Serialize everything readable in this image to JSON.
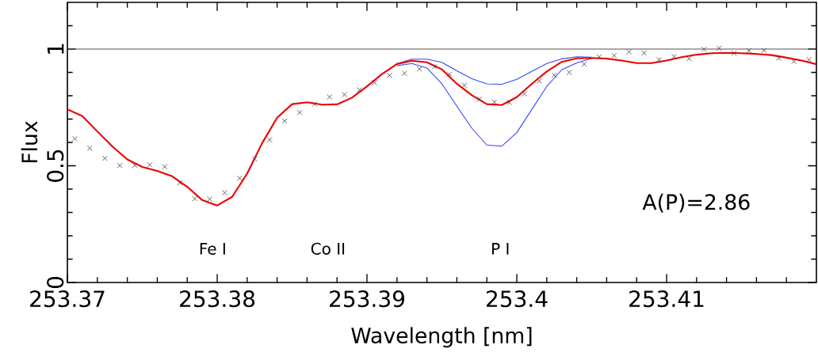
{
  "chart_data": {
    "type": "line",
    "xlabel": "Wavelength [nm]",
    "ylabel": "Flux",
    "xlim": [
      253.37,
      253.42
    ],
    "ylim": [
      0,
      1.2
    ],
    "xticks": [
      253.37,
      253.38,
      253.39,
      253.4,
      253.41,
      {
        "value": 253.372,
        "label": null
      },
      {
        "value": 253.374,
        "label": null
      },
      {
        "value": 253.376,
        "label": null
      },
      {
        "value": 253.378,
        "label": null
      },
      {
        "value": 253.382,
        "label": null
      },
      {
        "value": 253.384,
        "label": null
      },
      {
        "value": 253.386,
        "label": null
      },
      {
        "value": 253.388,
        "label": null
      },
      {
        "value": 253.392,
        "label": null
      },
      {
        "value": 253.394,
        "label": null
      },
      {
        "value": 253.396,
        "label": null
      },
      {
        "value": 253.398,
        "label": null
      },
      {
        "value": 253.402,
        "label": null
      },
      {
        "value": 253.404,
        "label": null
      },
      {
        "value": 253.406,
        "label": null
      },
      {
        "value": 253.408,
        "label": null
      },
      {
        "value": 253.412,
        "label": null
      },
      {
        "value": 253.414,
        "label": null
      },
      {
        "value": 253.416,
        "label": null
      },
      {
        "value": 253.418,
        "label": null
      }
    ],
    "yticks": [
      0,
      0.5,
      1,
      {
        "value": 0.1,
        "label": null
      },
      {
        "value": 0.2,
        "label": null
      },
      {
        "value": 0.3,
        "label": null
      },
      {
        "value": 0.4,
        "label": null
      },
      {
        "value": 0.6,
        "label": null
      },
      {
        "value": 0.7,
        "label": null
      },
      {
        "value": 0.8,
        "label": null
      },
      {
        "value": 0.9,
        "label": null
      },
      {
        "value": 1.1,
        "label": null
      }
    ],
    "grid": false,
    "series": [
      {
        "type": "scatter",
        "marker": "cross",
        "color": "#404040",
        "x": [
          253.3705,
          253.3715,
          253.3725,
          253.3735,
          253.3745,
          253.3755,
          253.3765,
          253.3775,
          253.3785,
          253.3795,
          253.3805,
          253.3815,
          253.3825,
          253.3835,
          253.3845,
          253.3855,
          253.3865,
          253.3875,
          253.3885,
          253.3895,
          253.3905,
          253.3915,
          253.3925,
          253.3935,
          253.3945,
          253.3955,
          253.3965,
          253.3975,
          253.3985,
          253.3995,
          253.4005,
          253.4015,
          253.4025,
          253.4035,
          253.4045,
          253.4055,
          253.4065,
          253.4075,
          253.4085,
          253.4095,
          253.4105,
          253.4115,
          253.4125,
          253.4135,
          253.4145,
          253.4155,
          253.4165,
          253.4175,
          253.4185,
          253.4195
        ],
        "values": [
          0.616,
          0.575,
          0.532,
          0.501,
          0.502,
          0.504,
          0.496,
          0.427,
          0.359,
          0.357,
          0.385,
          0.447,
          0.529,
          0.611,
          0.692,
          0.728,
          0.764,
          0.795,
          0.805,
          0.825,
          0.856,
          0.887,
          0.896,
          0.915,
          0.924,
          0.892,
          0.845,
          0.785,
          0.773,
          0.771,
          0.808,
          0.863,
          0.888,
          0.9,
          0.936,
          0.967,
          0.972,
          0.988,
          0.983,
          0.955,
          0.968,
          0.959,
          0.999,
          1.004,
          0.982,
          0.993,
          0.994,
          0.961,
          0.947,
          0.955
        ]
      },
      {
        "color": "#3344ff",
        "line_style": "solid",
        "marker": "none",
        "x": [
          253.392,
          253.393,
          253.394,
          253.395,
          253.396,
          253.397,
          253.398,
          253.399,
          253.4,
          253.401,
          253.402,
          253.403,
          253.404,
          253.405
        ],
        "values": [
          0.937,
          0.957,
          0.957,
          0.943,
          0.907,
          0.873,
          0.851,
          0.849,
          0.87,
          0.904,
          0.938,
          0.958,
          0.967,
          0.965
        ]
      },
      {
        "color": "#3344ff",
        "line_style": "solid",
        "marker": "none",
        "x": [
          253.392,
          253.393,
          253.394,
          253.395,
          253.396,
          253.397,
          253.398,
          253.399,
          253.4,
          253.401,
          253.402,
          253.403,
          253.404,
          253.405
        ],
        "values": [
          0.929,
          0.938,
          0.919,
          0.851,
          0.755,
          0.661,
          0.589,
          0.584,
          0.642,
          0.741,
          0.84,
          0.911,
          0.941,
          0.96
        ]
      },
      {
        "color": "#ee0000",
        "line_style": "solid",
        "marker": "none",
        "x": [
          253.37,
          253.371,
          253.372,
          253.373,
          253.374,
          253.375,
          253.376,
          253.377,
          253.378,
          253.379,
          253.38,
          253.381,
          253.382,
          253.383,
          253.384,
          253.385,
          253.386,
          253.387,
          253.388,
          253.389,
          253.39,
          253.391,
          253.392,
          253.393,
          253.394,
          253.395,
          253.396,
          253.397,
          253.398,
          253.399,
          253.4,
          253.401,
          253.402,
          253.403,
          253.404,
          253.405,
          253.406,
          253.407,
          253.408,
          253.409,
          253.41,
          253.411,
          253.412,
          253.413,
          253.414,
          253.415,
          253.416,
          253.417,
          253.418,
          253.419,
          253.42
        ],
        "values": [
          0.742,
          0.713,
          0.647,
          0.583,
          0.527,
          0.495,
          0.478,
          0.455,
          0.41,
          0.353,
          0.33,
          0.367,
          0.467,
          0.597,
          0.706,
          0.764,
          0.772,
          0.762,
          0.763,
          0.792,
          0.84,
          0.893,
          0.936,
          0.95,
          0.943,
          0.913,
          0.851,
          0.802,
          0.764,
          0.76,
          0.794,
          0.851,
          0.904,
          0.945,
          0.96,
          0.962,
          0.959,
          0.951,
          0.94,
          0.94,
          0.951,
          0.965,
          0.976,
          0.982,
          0.984,
          0.982,
          0.979,
          0.974,
          0.963,
          0.951,
          0.935
        ]
      }
    ],
    "ref_lines": [
      {
        "axis": "y",
        "value": 1,
        "color": "#555555",
        "line_style": "solid"
      }
    ],
    "annotations": [
      "Fe I",
      "Co II",
      "P I",
      "A(P)=2.86"
    ]
  }
}
